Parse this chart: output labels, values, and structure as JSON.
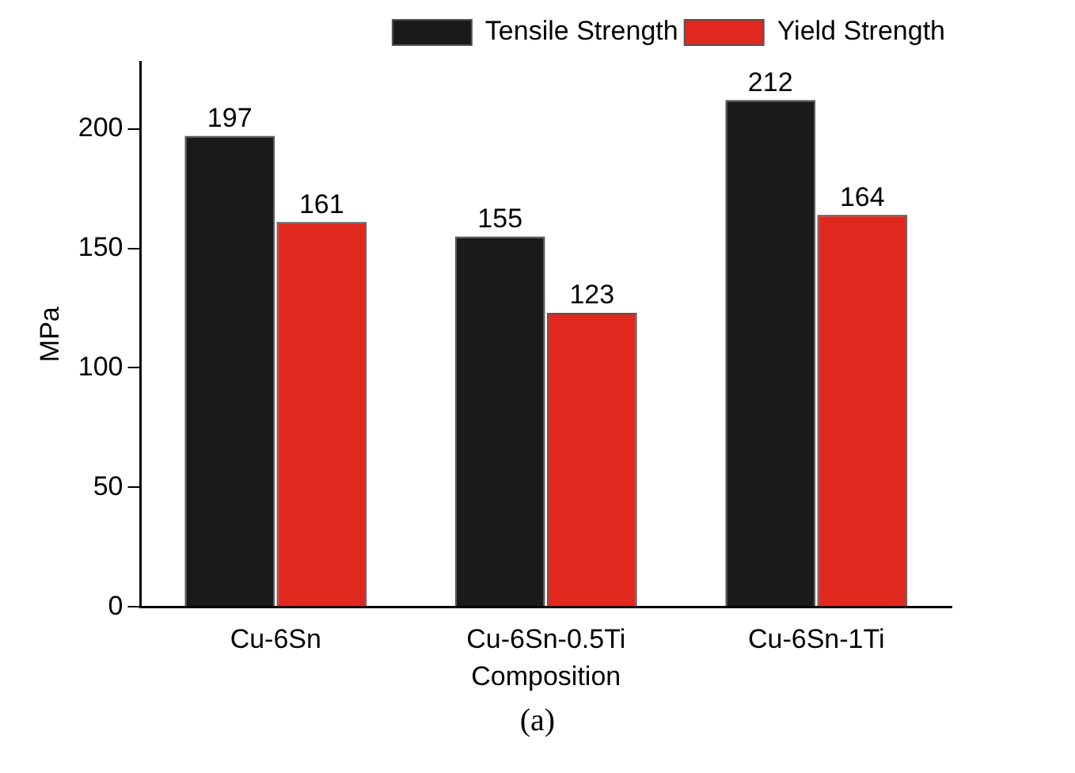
{
  "chart_data": {
    "type": "bar",
    "xlabel": "Composition",
    "ylabel": "MPa",
    "categories": [
      "Cu-6Sn",
      "Cu-6Sn-0.5Ti",
      "Cu-6Sn-1Ti"
    ],
    "series": [
      {
        "name": "Tensile Strength",
        "color": "#1a1a1a",
        "values": [
          197,
          155,
          212
        ]
      },
      {
        "name": "Yield Strength",
        "color": "#e0281e",
        "values": [
          161,
          123,
          164
        ]
      }
    ],
    "ylim": [
      0,
      228
    ],
    "yticks": [
      0,
      50,
      100,
      150,
      200
    ],
    "grid": false,
    "legend": "top right",
    "data_labels": true,
    "annotations": [
      "(a)"
    ]
  }
}
